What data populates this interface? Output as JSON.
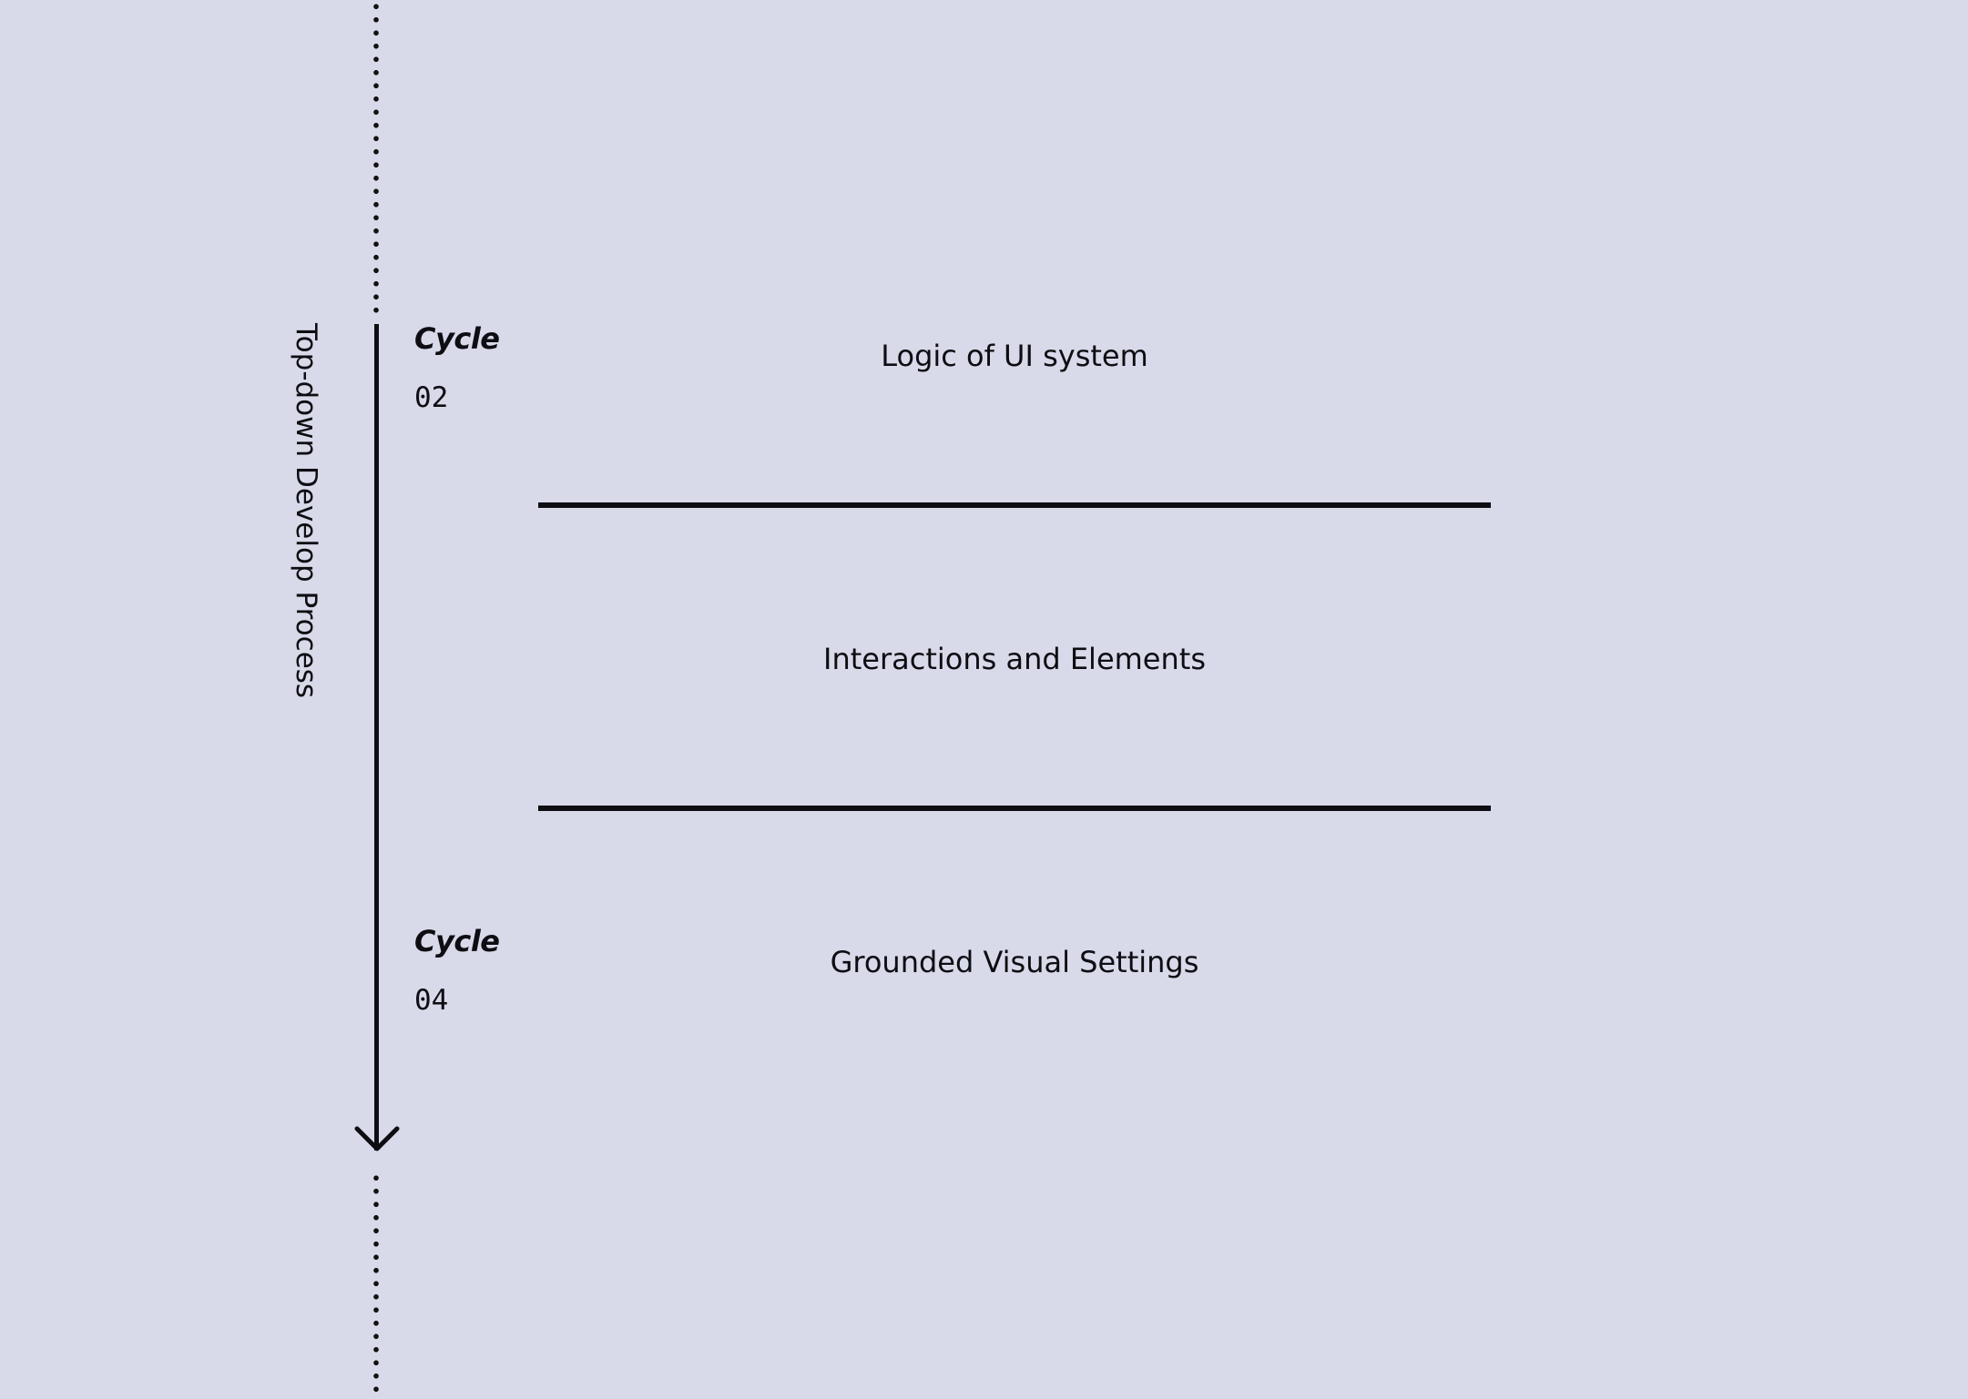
{
  "colors": {
    "background": "#d8d9e9",
    "ink": "#0d0d12"
  },
  "axis": {
    "label": "Top-down Develop Process",
    "arrow": "down-arrow-icon"
  },
  "cycles": [
    {
      "word": "Cycle",
      "number": "02"
    },
    {
      "word": "Cycle",
      "number": "04"
    }
  ],
  "layers": [
    {
      "label": "Logic of UI system"
    },
    {
      "label": "Interactions and Elements"
    },
    {
      "label": "Grounded Visual Settings"
    }
  ]
}
